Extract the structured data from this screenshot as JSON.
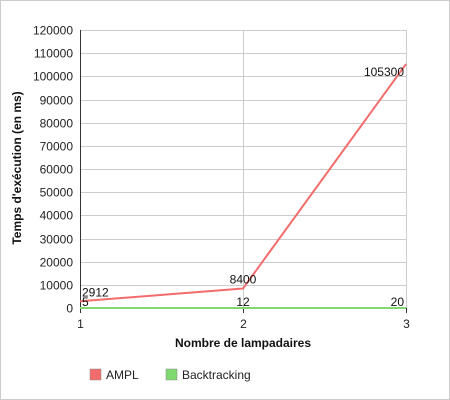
{
  "chart_data": {
    "type": "line",
    "x": [
      1,
      2,
      3
    ],
    "xticks": [
      "1",
      "2",
      "3"
    ],
    "xlabel": "Nombre de lampadaires",
    "ylabel": "Temps d'exécution (en ms)",
    "ylim": [
      0,
      120000
    ],
    "yticks": [
      "0",
      "10000",
      "20000",
      "30000",
      "40000",
      "50000",
      "60000",
      "70000",
      "80000",
      "90000",
      "100000",
      "110000",
      "120000"
    ],
    "grid": true,
    "legend_position": "bottom-left",
    "series": [
      {
        "name": "AMPL",
        "color": "#f26c6c",
        "values": [
          2912,
          8400,
          105300
        ],
        "labels": [
          "2912",
          "8400",
          "105300"
        ]
      },
      {
        "name": "Backtracking",
        "color": "#7fd96f",
        "values": [
          5,
          12,
          20
        ],
        "labels": [
          "5",
          "12",
          "20"
        ]
      }
    ]
  }
}
